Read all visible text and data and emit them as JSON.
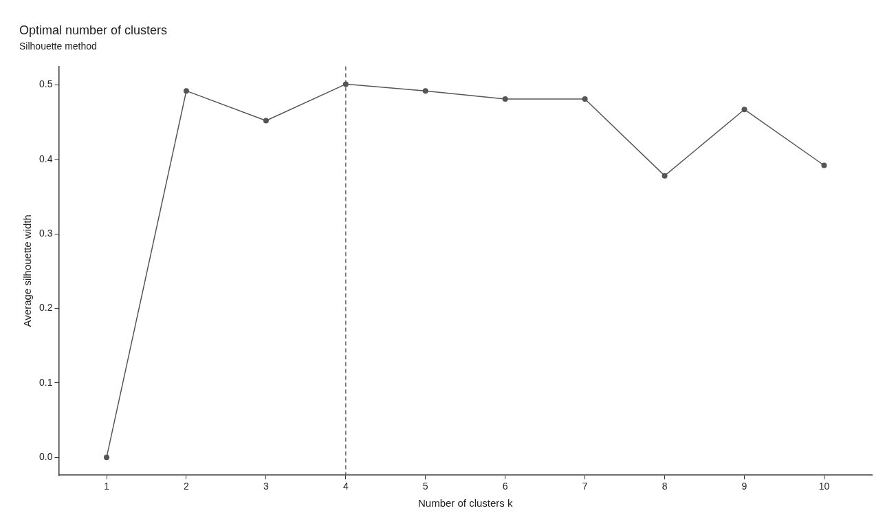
{
  "chart_data": {
    "type": "line",
    "title": "Optimal number of clusters",
    "subtitle": "Silhouette method",
    "xlabel": "Number of clusters k",
    "ylabel": "Average silhouette width",
    "x": [
      1,
      2,
      3,
      4,
      5,
      6,
      7,
      8,
      9,
      10
    ],
    "series": [
      {
        "color": "#555555",
        "values": [
          0.0,
          0.492,
          0.452,
          0.501,
          0.492,
          0.481,
          0.481,
          0.378,
          0.467,
          0.392
        ]
      }
    ],
    "xlim": [
      0.4,
      10.6
    ],
    "xticks": [
      1,
      2,
      3,
      4,
      5,
      6,
      7,
      8,
      9,
      10
    ],
    "ylim": [
      -0.024,
      0.525
    ],
    "yticks": [
      {
        "value": 0,
        "label": "0.0"
      },
      0.1,
      0.2,
      0.3,
      0.4,
      0.5
    ],
    "ref_lines": [
      {
        "axis": "x",
        "value": 4,
        "color": "#555555",
        "line_style": "dashed"
      }
    ],
    "grid": false,
    "legend": false,
    "marker": "circle",
    "line_style": "solid"
  }
}
